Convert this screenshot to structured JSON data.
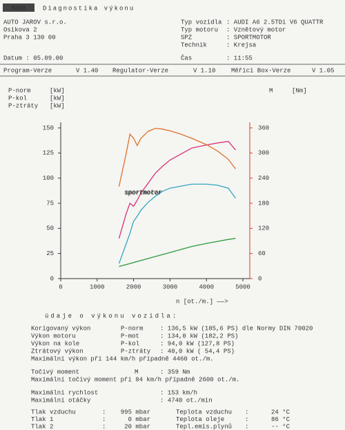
{
  "header": {
    "brand": "MAHA",
    "title": "Diagnostika výkonu"
  },
  "company": [
    "AUTO JAROV s.r.o.",
    "Osikova 2",
    "Praha 3     130 00"
  ],
  "date": "Datum : 05.09.00",
  "vehicle": [
    [
      "Typ vozidla",
      ": AUDI A6 2.5TDi V6 QUATTR"
    ],
    [
      "Typ motoru",
      ": Vznětový motor"
    ],
    [
      "SPZ",
      ":               SPORTMOTOR"
    ],
    [
      "Technik",
      ": Krejsa"
    ]
  ],
  "time": [
    "Čas",
    ": 11:55"
  ],
  "versions": [
    "Program-Verze",
    "V 1.40",
    "Regulator-Verze",
    "V 1.10",
    "Měřicí Box-Verze",
    "V 1.05"
  ],
  "chart_data": {
    "type": "line",
    "x_label": "n [ot./m.] ——>",
    "watermark": "sportmotor",
    "x": [
      1600,
      1800,
      1900,
      2000,
      2100,
      2200,
      2400,
      2600,
      2800,
      3000,
      3300,
      3600,
      4000,
      4300,
      4600,
      4800
    ],
    "xlim": [
      0,
      5000
    ],
    "xticks": [
      0,
      1000,
      2000,
      3000,
      4000,
      5000
    ],
    "ylim": [
      0,
      150
    ],
    "yticks": [
      0,
      25,
      50,
      75,
      100,
      125,
      150
    ],
    "y2lim": [
      0,
      360
    ],
    "y2ticks": [
      0,
      60,
      120,
      180,
      240,
      300,
      360
    ],
    "series": [
      {
        "name": "P-norm",
        "unit": "[kW]",
        "color": "#d8307a",
        "values": [
          40,
          65,
          75,
          72,
          78,
          85,
          95,
          105,
          112,
          118,
          124,
          130,
          133,
          135,
          136.5,
          128
        ]
      },
      {
        "name": "P-kol",
        "unit": "[kW]",
        "color": "#2fa6c4",
        "values": [
          15,
          35,
          45,
          57,
          62,
          68,
          76,
          82,
          87,
          90,
          92,
          94,
          94,
          93,
          90,
          80
        ]
      },
      {
        "name": "P-ztráty",
        "unit": "[kW]",
        "color": "#2a9a3a",
        "values": [
          12,
          14,
          15,
          16,
          17,
          18,
          20,
          22,
          24,
          26,
          29,
          32,
          35,
          37,
          39,
          40
        ]
      },
      {
        "name": "M",
        "unit": "[Nm]",
        "color": "#e0702a",
        "axis": "y2",
        "values": [
          220,
          300,
          345,
          335,
          318,
          335,
          352,
          359,
          357,
          353,
          345,
          335,
          320,
          305,
          285,
          262
        ]
      }
    ]
  },
  "results_title": "údaje o výkonu vozidla:",
  "results": [
    [
      "Korigovaný výkon",
      "P-norm",
      ": 136,5 kW (185,6 PS) dle Normy DIN 70020"
    ],
    [
      "Výkon motoru",
      "P-mot",
      ": 134,0 kW (182,2 PS)"
    ],
    [
      "Výkon na kole",
      "P-kol",
      ": 94,0 kW (127,8 PS)"
    ],
    [
      "Ztrátový výkon",
      "P-ztráty",
      ": 40,0 kW ( 54,4 PS)"
    ]
  ],
  "max_power": "Maximální výkon při 144 km/h případně  4460 ot./m.",
  "torque": [
    "Točivý moment",
    "M",
    ":  359 Nm"
  ],
  "max_torque": "Maximální točivý moment při  84 km/h případně  2600 ot./m.",
  "limits": [
    [
      "Maximální rychlost",
      ":  153 km/h"
    ],
    [
      "Maximální otáčky",
      ": 4740 ot./min"
    ]
  ],
  "conditions": [
    [
      "Tlak vzduchu",
      ":",
      "995 mbar",
      "Teplota vzduchu",
      ":",
      "24 °C"
    ],
    [
      "Tlak 1",
      ":",
      "0 mbar",
      "Teplota oleje",
      ":",
      "86 °C"
    ],
    [
      "Tlak 2",
      ":",
      "20 mbar",
      "Tepl.emis.plynů",
      ":",
      "-- °C"
    ]
  ]
}
